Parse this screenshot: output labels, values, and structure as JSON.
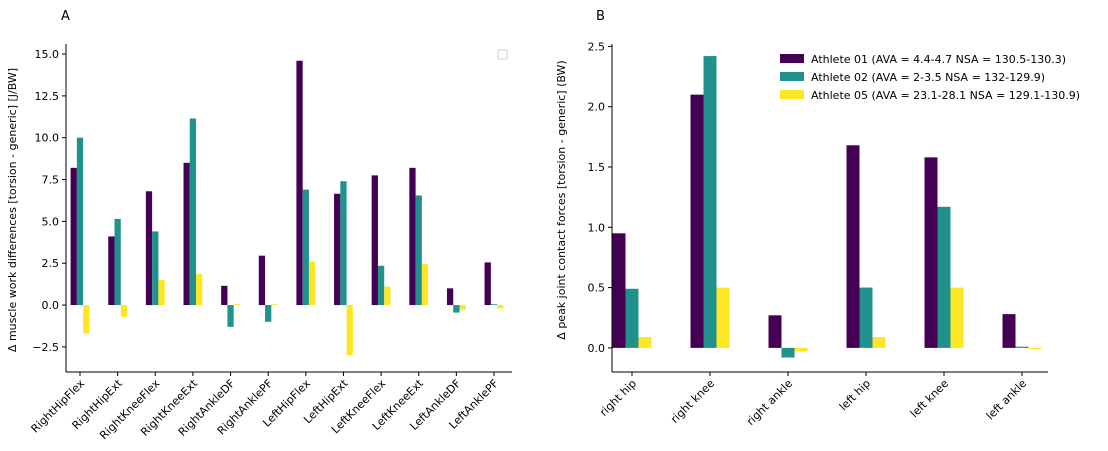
{
  "colors": {
    "a01": "#440154",
    "a02": "#21918c",
    "a05": "#fde725"
  },
  "chart_data": [
    {
      "panel": "A",
      "type": "bar",
      "ylabel": "Δ muscle work differences [torsion - generic] [J/BW]",
      "ylim": [
        -4.0,
        15.6
      ],
      "yticks": [
        -2.5,
        0.0,
        2.5,
        5.0,
        7.5,
        10.0,
        12.5,
        15.0
      ],
      "ytick_labels": [
        "−2.5",
        "0.0",
        "2.5",
        "5.0",
        "7.5",
        "10.0",
        "12.5",
        "15.0"
      ],
      "categories": [
        "RightHipFlex",
        "RightHipExt",
        "RightKneeFlex",
        "RightKneeExt",
        "RightAnkleDF",
        "RightAnklePF",
        "LeftHipFlex",
        "LeftHipExt",
        "LeftKneeFlex",
        "LeftKneeExt",
        "LeftAnkleDF",
        "LeftAnklePF"
      ],
      "series": [
        {
          "color_key": "a01",
          "values": [
            8.2,
            4.1,
            6.8,
            8.5,
            1.15,
            2.95,
            14.6,
            6.65,
            7.75,
            8.2,
            1.0,
            2.55
          ]
        },
        {
          "color_key": "a02",
          "values": [
            10.0,
            5.15,
            4.4,
            11.15,
            -1.3,
            -1.0,
            6.9,
            7.4,
            2.35,
            6.55,
            -0.45,
            0.05
          ]
        },
        {
          "color_key": "a05",
          "values": [
            -1.7,
            -0.7,
            1.5,
            1.85,
            0.05,
            0.05,
            2.6,
            -3.0,
            1.1,
            2.45,
            -0.3,
            -0.2
          ]
        }
      ],
      "legend": {
        "placement": "top-right",
        "entries": []
      }
    },
    {
      "panel": "B",
      "type": "bar",
      "ylabel": "Δ peak joint contact forces [torsion - generic] (BW)",
      "ylim": [
        -0.2,
        2.52
      ],
      "yticks": [
        0.0,
        0.5,
        1.0,
        1.5,
        2.0,
        2.5
      ],
      "ytick_labels": [
        "0.0",
        "0.5",
        "1.0",
        "1.5",
        "2.0",
        "2.5"
      ],
      "categories": [
        "right hip",
        "right knee",
        "right ankle",
        "left hip",
        "left knee",
        "left ankle"
      ],
      "series": [
        {
          "name": "Athlete 01 (AVA = 4.4-4.7 NSA = 130.5-130.3)",
          "color_key": "a01",
          "values": [
            0.95,
            2.1,
            0.27,
            1.68,
            1.58,
            0.28
          ]
        },
        {
          "name": "Athlete 02 (AVA = 2-3.5 NSA = 132-129.9)",
          "color_key": "a02",
          "values": [
            0.49,
            2.42,
            -0.08,
            0.5,
            1.17,
            0.01
          ]
        },
        {
          "name": "Athlete 05 (AVA = 23.1-28.1 NSA = 129.1-130.9)",
          "color_key": "a05",
          "values": [
            0.09,
            0.5,
            -0.03,
            0.09,
            0.5,
            -0.01
          ]
        }
      ],
      "legend": {
        "placement": "top-right"
      }
    }
  ]
}
